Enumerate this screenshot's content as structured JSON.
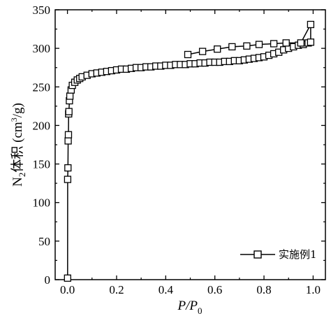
{
  "chart_data": {
    "type": "line",
    "xlabel": {
      "main": "P/P",
      "sub": "0"
    },
    "ylabel": {
      "n": "N",
      "n_sub": "2",
      "mid": "体积 (cm",
      "sup": "3",
      "end": "/g)"
    },
    "xlim": [
      -0.05,
      1.05
    ],
    "ylim": [
      0,
      350
    ],
    "xticks": [
      0.0,
      0.2,
      0.4,
      0.6,
      0.8,
      1.0
    ],
    "xtick_labels": [
      "0.0",
      "0.2",
      "0.4",
      "0.6",
      "0.8",
      "1.0"
    ],
    "yticks": [
      0,
      50,
      100,
      150,
      200,
      250,
      300,
      350
    ],
    "ytick_labels": [
      "0",
      "50",
      "100",
      "150",
      "200",
      "250",
      "300",
      "350"
    ],
    "marker": "open-square",
    "legend_position": "lower-right",
    "series": [
      {
        "name": "实施例1",
        "color": "#000000",
        "x": [
          0.0005,
          0.001,
          0.002,
          0.003,
          0.004,
          0.005,
          0.006,
          0.008,
          0.01,
          0.015,
          0.02,
          0.03,
          0.04,
          0.05,
          0.06,
          0.08,
          0.1,
          0.12,
          0.14,
          0.16,
          0.18,
          0.2,
          0.22,
          0.24,
          0.26,
          0.28,
          0.3,
          0.32,
          0.34,
          0.36,
          0.38,
          0.4,
          0.42,
          0.44,
          0.46,
          0.48,
          0.5,
          0.52,
          0.54,
          0.56,
          0.58,
          0.6,
          0.62,
          0.64,
          0.66,
          0.68,
          0.7,
          0.72,
          0.74,
          0.76,
          0.78,
          0.8,
          0.82,
          0.84,
          0.86,
          0.88,
          0.9,
          0.92,
          0.94,
          0.96,
          0.98,
          0.99,
          0.99,
          0.95,
          0.89,
          0.84,
          0.78,
          0.73,
          0.67,
          0.61,
          0.55,
          0.49
        ],
        "y": [
          2,
          130,
          145,
          180,
          188,
          215,
          218,
          232,
          238,
          246,
          252,
          256,
          259,
          261,
          263,
          265,
          267,
          268,
          269,
          270,
          271,
          272,
          273,
          273,
          274,
          275,
          275,
          276,
          276,
          277,
          277,
          278,
          278,
          279,
          279,
          279,
          280,
          280,
          281,
          281,
          282,
          282,
          282,
          283,
          283,
          284,
          284,
          285,
          286,
          287,
          288,
          289,
          291,
          293,
          295,
          298,
          300,
          302,
          304,
          305,
          307,
          308,
          331,
          307,
          307,
          306,
          305,
          303,
          302,
          299,
          296,
          292
        ]
      }
    ]
  }
}
